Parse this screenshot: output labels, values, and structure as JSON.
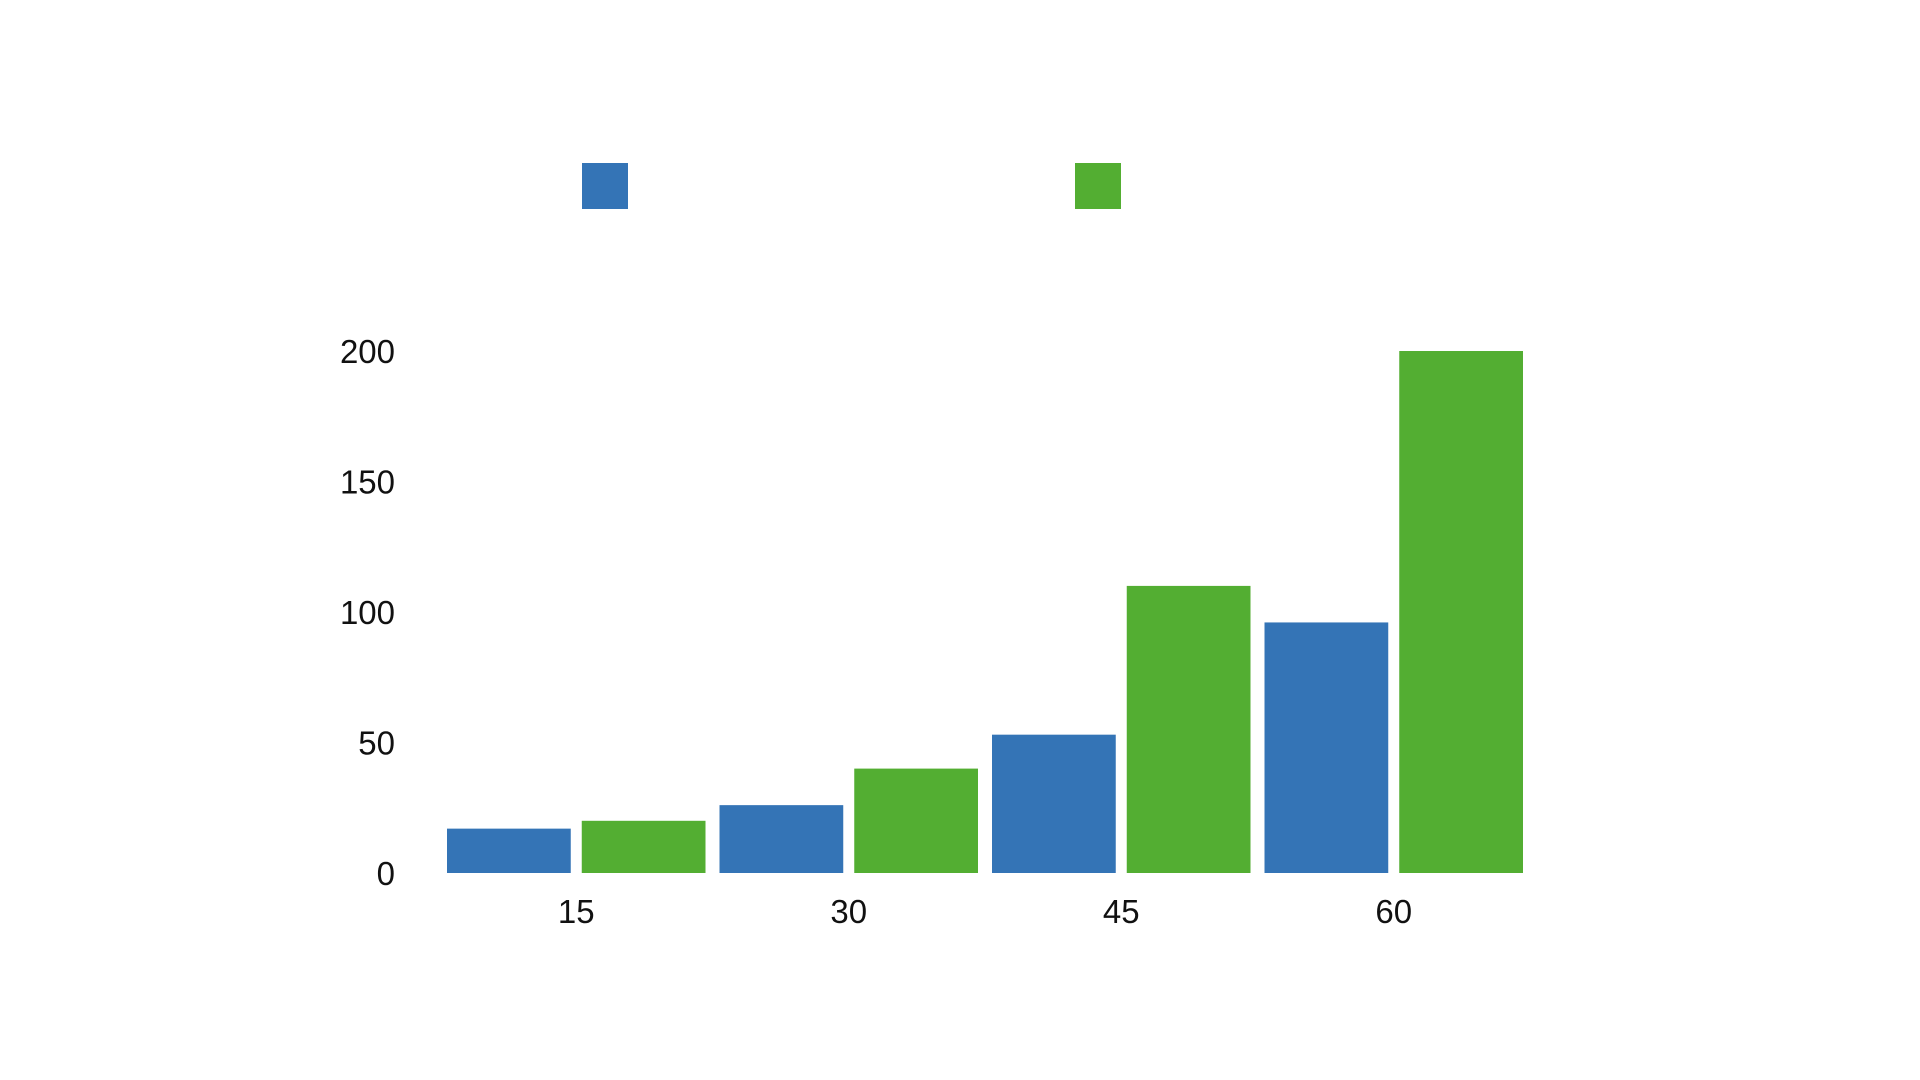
{
  "chart_data": {
    "type": "bar",
    "categories": [
      "15",
      "30",
      "45",
      "60"
    ],
    "series": [
      {
        "color": "#3474b6",
        "values": [
          17,
          26,
          53,
          96
        ]
      },
      {
        "color": "#53ae32",
        "values": [
          20,
          40,
          110,
          200
        ]
      }
    ],
    "yticks": [
      "0",
      "50",
      "100",
      "150",
      "200"
    ],
    "ylim": [
      0,
      200
    ],
    "legend_position": "top",
    "grid": false,
    "title": "",
    "xlabel": "",
    "ylabel": ""
  }
}
